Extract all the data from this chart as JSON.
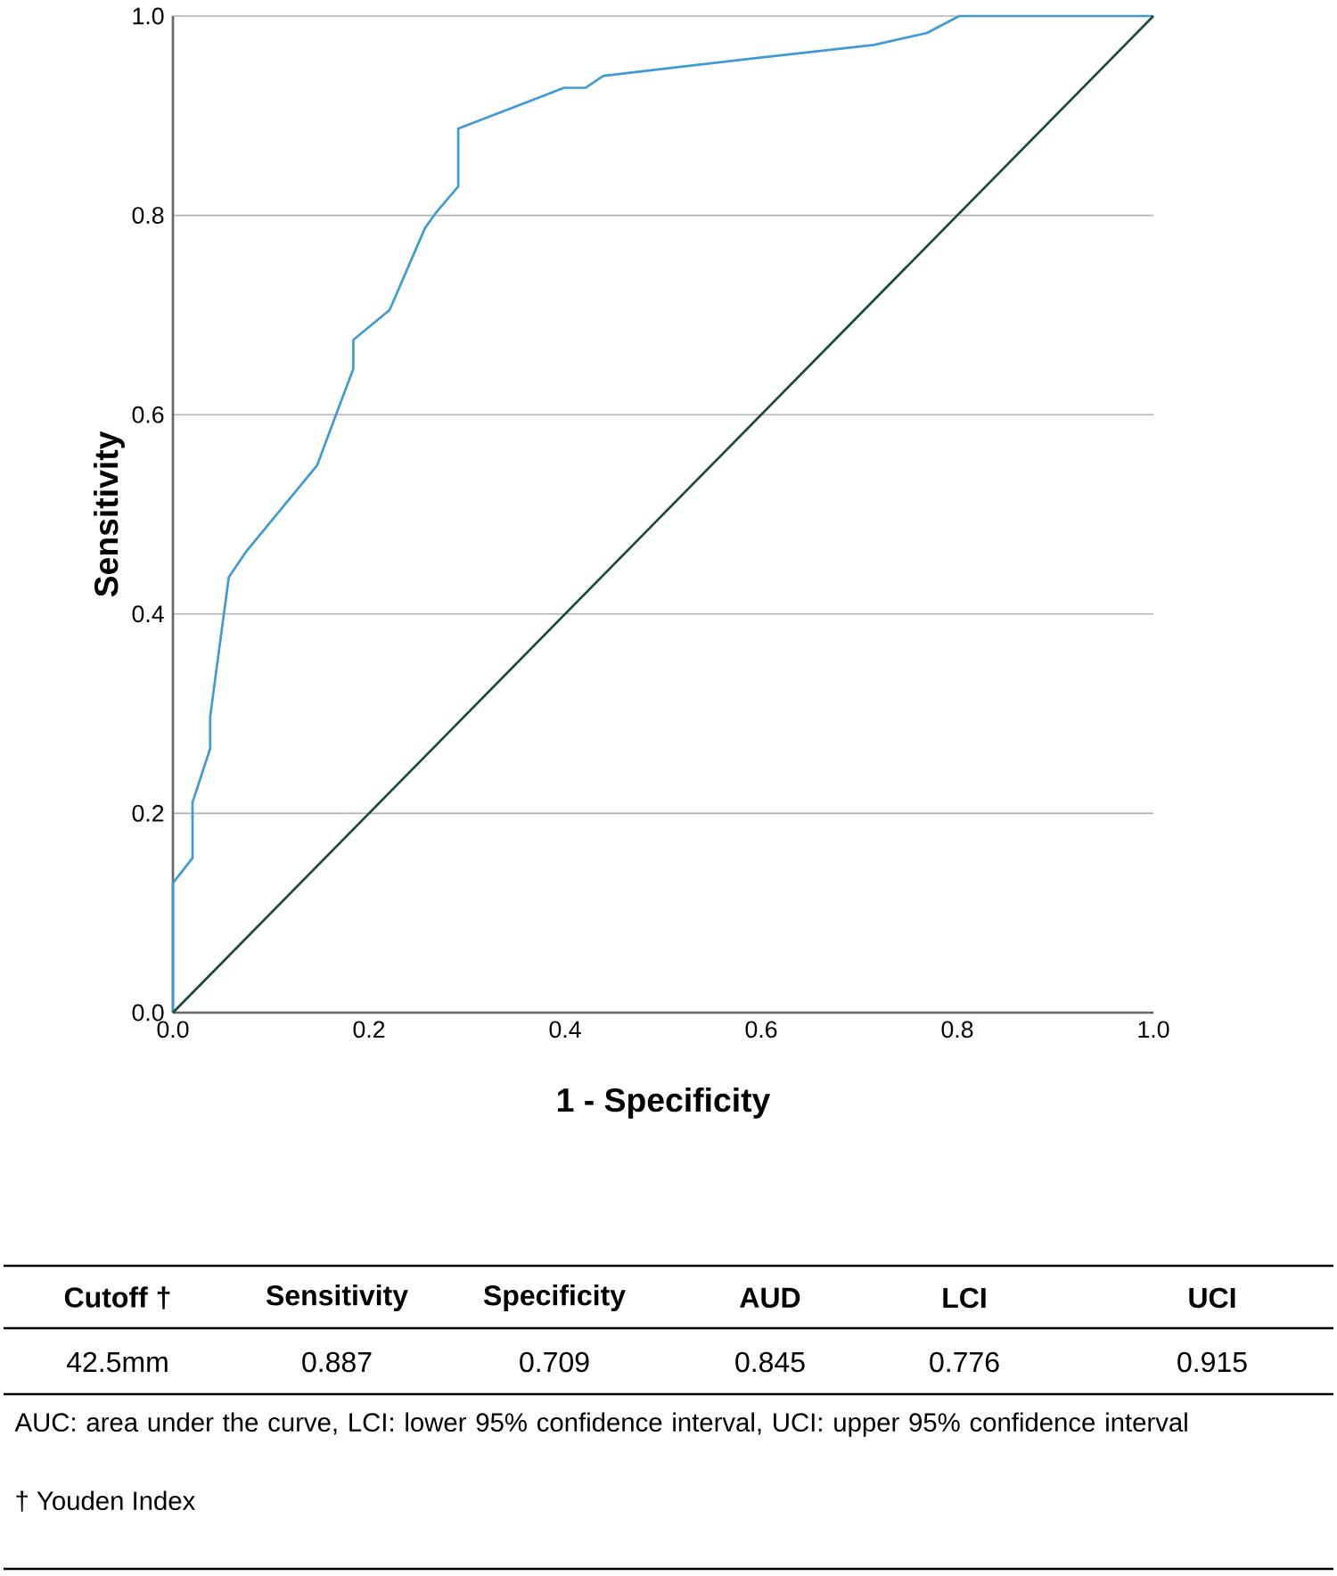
{
  "chart_data": {
    "type": "line",
    "xlabel": "1 - Specificity",
    "ylabel": "Sensitivity",
    "xlim": [
      0,
      1
    ],
    "ylim": [
      0,
      1
    ],
    "xticks": [
      {
        "value": 0,
        "label": "0.0"
      },
      {
        "value": 0.2,
        "label": "0.2"
      },
      {
        "value": 0.4,
        "label": "0.4"
      },
      {
        "value": 0.6,
        "label": "0.6"
      },
      {
        "value": 0.8,
        "label": "0.8"
      },
      {
        "value": 1,
        "label": "1.0"
      }
    ],
    "yticks": [
      {
        "value": 0,
        "label": "0.0"
      },
      {
        "value": 0.2,
        "label": "0.2"
      },
      {
        "value": 0.4,
        "label": "0.4"
      },
      {
        "value": 0.6,
        "label": "0.6"
      },
      {
        "value": 0.8,
        "label": "0.8"
      },
      {
        "value": 1,
        "label": "1.0"
      }
    ],
    "grid": "y",
    "marker": "none",
    "series": [
      {
        "color": "#3e9bd6",
        "x": [
          0,
          0,
          0.02,
          0.02,
          0.038,
          0.038,
          0.057,
          0.075,
          0.147,
          0.166,
          0.184,
          0.184,
          0.221,
          0.257,
          0.267,
          0.291,
          0.291,
          0.333,
          0.399,
          0.421,
          0.439,
          0.587,
          0.715,
          0.769,
          0.802,
          1
        ],
        "values": [
          0,
          0.13,
          0.155,
          0.211,
          0.265,
          0.297,
          0.437,
          0.463,
          0.549,
          0.599,
          0.646,
          0.675,
          0.705,
          0.787,
          0.801,
          0.829,
          0.887,
          0.903,
          0.928,
          0.928,
          0.94,
          0.957,
          0.971,
          0.983,
          1,
          1
        ]
      },
      {
        "color": "#1a4a3a",
        "x": [
          0,
          1
        ],
        "values": [
          0,
          1
        ]
      }
    ],
    "annotations": [
      "Cutoff †",
      "Sensitivity",
      "Specificity",
      "AUD",
      "LCI",
      "UCI",
      "42.5mm",
      "0.887",
      "0.709",
      "0.845",
      "0.776",
      "0.915",
      "AUC: area under the curve, LCI: lower 95% confidence interval, UCI: upper 95% confidence interval",
      "† Youden Index"
    ]
  }
}
